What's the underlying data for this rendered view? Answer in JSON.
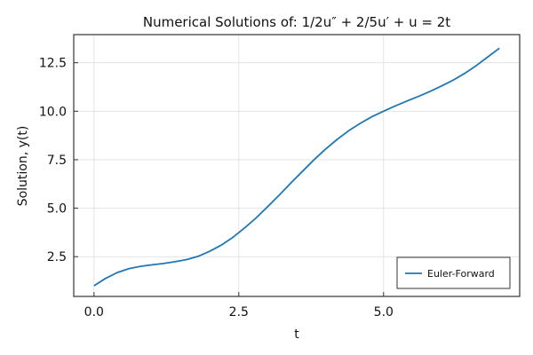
{
  "chart_data": {
    "type": "line",
    "title": "Numerical Solutions of: 1/2u″ + 2/5u′ + u = 2t",
    "xlabel": "t",
    "ylabel": "Solution, y(t)",
    "xlim": [
      -0.35,
      7.35
    ],
    "ylim": [
      0.45,
      13.95
    ],
    "x_ticks": [
      0.0,
      2.5,
      5.0
    ],
    "x_tick_labels": [
      "0.0",
      "2.5",
      "5.0"
    ],
    "y_ticks": [
      2.5,
      5.0,
      7.5,
      10.0,
      12.5
    ],
    "y_tick_labels": [
      "2.5",
      "5.0",
      "7.5",
      "10.0",
      "12.5"
    ],
    "grid": true,
    "legend": {
      "position": "bottom-right"
    },
    "series": [
      {
        "name": "Euler-Forward",
        "color": "#1f77b4",
        "x": [
          0.0,
          0.2,
          0.4,
          0.6,
          0.8,
          1.0,
          1.2,
          1.4,
          1.6,
          1.8,
          2.0,
          2.2,
          2.4,
          2.6,
          2.8,
          3.0,
          3.2,
          3.4,
          3.6,
          3.8,
          4.0,
          4.2,
          4.4,
          4.6,
          4.8,
          5.0,
          5.2,
          5.4,
          5.6,
          5.8,
          6.0,
          6.2,
          6.4,
          6.6,
          6.8,
          7.0
        ],
        "y": [
          1.0,
          1.38,
          1.68,
          1.88,
          2.0,
          2.08,
          2.15,
          2.24,
          2.35,
          2.52,
          2.78,
          3.1,
          3.5,
          3.98,
          4.5,
          5.08,
          5.68,
          6.3,
          6.9,
          7.5,
          8.05,
          8.55,
          9.0,
          9.38,
          9.72,
          10.0,
          10.27,
          10.52,
          10.76,
          11.02,
          11.3,
          11.6,
          11.95,
          12.35,
          12.8,
          13.25
        ]
      }
    ]
  }
}
